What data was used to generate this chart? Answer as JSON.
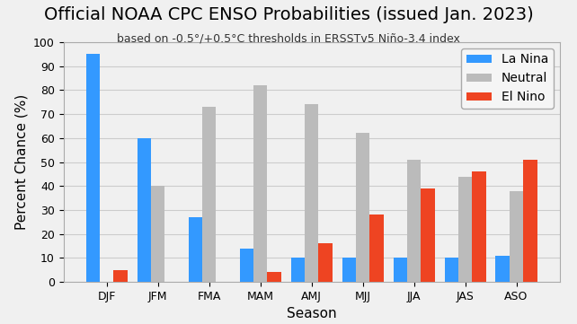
{
  "title": "Official NOAA CPC ENSO Probabilities (issued Jan. 2023)",
  "subtitle": "based on -0.5°/+0.5°C thresholds in ERSSTv5 Niño-3.4 index",
  "xlabel": "Season",
  "ylabel": "Percent Chance (%)",
  "categories": [
    "DJF",
    "JFM",
    "FMA",
    "MAM",
    "AMJ",
    "MJJ",
    "JJA",
    "JAS",
    "ASO"
  ],
  "la_nina": [
    95,
    60,
    27,
    14,
    10,
    10,
    10,
    10,
    11
  ],
  "neutral": [
    0,
    40,
    73,
    82,
    74,
    62,
    51,
    44,
    38
  ],
  "el_nino": [
    5,
    0,
    0,
    4,
    16,
    28,
    39,
    46,
    51
  ],
  "la_nina_color": "#3399ff",
  "neutral_color": "#bbbbbb",
  "el_nino_color": "#ee4422",
  "ylim": [
    0,
    100
  ],
  "yticks": [
    0,
    10,
    20,
    30,
    40,
    50,
    60,
    70,
    80,
    90,
    100
  ],
  "legend_labels": [
    "La Nina",
    "Neutral",
    "El Nino"
  ],
  "title_fontsize": 14,
  "subtitle_fontsize": 9,
  "axis_label_fontsize": 11,
  "tick_fontsize": 9,
  "legend_fontsize": 10,
  "bar_width": 0.27,
  "background_color": "#f0f0f0",
  "plot_bg_color": "#f0f0f0",
  "grid_color": "#cccccc"
}
